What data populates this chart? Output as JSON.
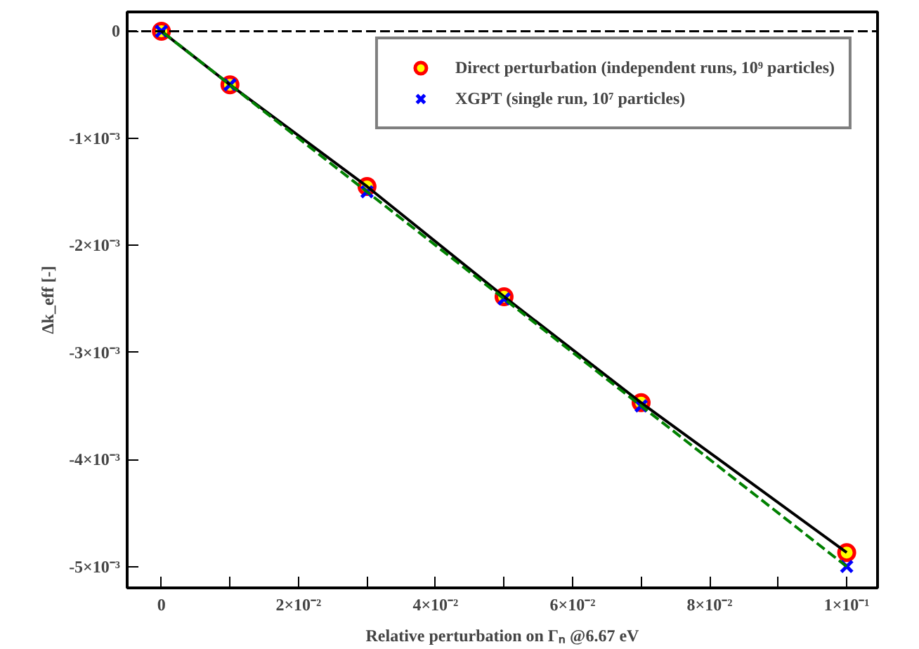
{
  "chart_data": {
    "type": "line",
    "xlabel": "Relative perturbation on Γₙ @6.67 eV",
    "ylabel": "Δk_eff [-]",
    "x": [
      0,
      0.01,
      0.03,
      0.05,
      0.07,
      0.1
    ],
    "series": [
      {
        "color": "#000000",
        "line_style": "solid",
        "values": [
          0,
          -0.0005,
          -0.00145,
          -0.00248,
          -0.00347,
          -0.00487
        ]
      },
      {
        "color": "#008000",
        "line_style": "dashed",
        "values": [
          0,
          -0.0005,
          -0.0015,
          -0.0025,
          -0.0035,
          -0.005
        ]
      },
      {
        "name": "Direct perturbation (independent runs, 10⁹ particles)",
        "type": "scatter",
        "color": "#ffff00",
        "marker": "circle",
        "values": [
          0,
          -0.0005,
          -0.00145,
          -0.00248,
          -0.00347,
          -0.00487
        ],
        "errors": [
          3e-05,
          3e-05,
          3e-05,
          3e-05,
          3e-05,
          3e-05
        ]
      },
      {
        "name": "XGPT (single run, 10⁷ particles)",
        "type": "scatter",
        "color": "#0000ff",
        "marker": "cross",
        "values": [
          0,
          -0.0005,
          -0.0015,
          -0.0025,
          -0.0035,
          -0.005
        ]
      }
    ],
    "xlim": [
      -0.005,
      0.1045
    ],
    "ylim": [
      -0.0052,
      0.00018
    ],
    "xticks": [
      {
        "value": 0,
        "label": "0"
      },
      {
        "value": 0.01,
        "label": null
      },
      {
        "value": 0.02,
        "label": "2×10⁻²"
      },
      {
        "value": 0.03,
        "label": null
      },
      {
        "value": 0.04,
        "label": "4×10⁻²"
      },
      {
        "value": 0.05,
        "label": null
      },
      {
        "value": 0.06,
        "label": "6×10⁻²"
      },
      {
        "value": 0.07,
        "label": null
      },
      {
        "value": 0.08,
        "label": "8×10⁻²"
      },
      {
        "value": 0.09,
        "label": null
      },
      {
        "value": 0.1,
        "label": "1×10⁻¹"
      }
    ],
    "yticks": [
      {
        "value": 0,
        "label": "0"
      },
      {
        "value": -0.001,
        "label": "-1×10⁻³"
      },
      {
        "value": -0.002,
        "label": "-2×10⁻³"
      },
      {
        "value": -0.003,
        "label": "-3×10⁻³"
      },
      {
        "value": -0.004,
        "label": "-4×10⁻³"
      },
      {
        "value": -0.005,
        "label": "-5×10⁻³"
      }
    ],
    "ref_lines": [
      {
        "axis": "y",
        "value": 0,
        "color": "#000000",
        "line_style": "dashed"
      }
    ],
    "grid": false,
    "legend": "top right"
  }
}
